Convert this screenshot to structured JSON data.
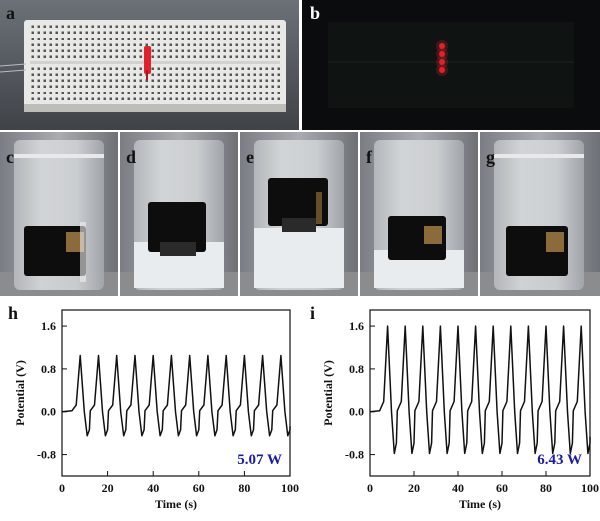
{
  "panels": {
    "a": {
      "label": "a"
    },
    "b": {
      "label": "b"
    },
    "c": {
      "label": "c"
    },
    "d": {
      "label": "d"
    },
    "e": {
      "label": "e"
    },
    "f": {
      "label": "f"
    },
    "g": {
      "label": "g"
    },
    "h": {
      "label": "h"
    },
    "i": {
      "label": "i"
    }
  },
  "colors": {
    "breadboard": "#e8e8e6",
    "led_red": "#e0202a",
    "dark_bg": "#0a0c0e",
    "liquid": "#e9ecef",
    "cap_black": "#0d0d0d",
    "annotation_blue": "#1a1aa8",
    "trace": "#111111"
  },
  "chart_data": [
    {
      "type": "line",
      "panel": "h",
      "xlabel": "Time (s)",
      "ylabel": "Potential (V)",
      "xlim": [
        0,
        100
      ],
      "ylim": [
        -1.2,
        1.9
      ],
      "xticks": [
        0,
        20,
        40,
        60,
        80,
        100
      ],
      "yticks": [
        -0.8,
        0.0,
        0.8,
        1.6
      ],
      "xtick_labels": [
        "0",
        "20",
        "40",
        "60",
        "80",
        "100"
      ],
      "ytick_labels": [
        "-0.8",
        "0.0",
        "0.8",
        "1.6"
      ],
      "annotation": "5.07 W",
      "series": [
        {
          "peaks_x": [
            8,
            16,
            24,
            32,
            40,
            48,
            56,
            64,
            72,
            80,
            88,
            96
          ],
          "peak_value": 1.05,
          "trough_value": -0.45,
          "baseline": 0.0,
          "period": 8
        }
      ]
    },
    {
      "type": "line",
      "panel": "i",
      "xlabel": "Time (s)",
      "ylabel": "Potential (V)",
      "xlim": [
        0,
        100
      ],
      "ylim": [
        -1.2,
        1.9
      ],
      "xticks": [
        0,
        20,
        40,
        60,
        80,
        100
      ],
      "yticks": [
        -0.8,
        0.0,
        0.8,
        1.6
      ],
      "xtick_labels": [
        "0",
        "20",
        "40",
        "60",
        "80",
        "100"
      ],
      "ytick_labels": [
        "-0.8",
        "0.0",
        "0.8",
        "1.6"
      ],
      "annotation": "6.43 W",
      "series": [
        {
          "peaks_x": [
            8,
            16,
            24,
            32,
            40,
            48,
            56,
            64,
            72,
            80,
            88,
            96
          ],
          "peak_value": 1.6,
          "trough_value": -0.78,
          "baseline": 0.0,
          "period": 8
        }
      ]
    }
  ]
}
